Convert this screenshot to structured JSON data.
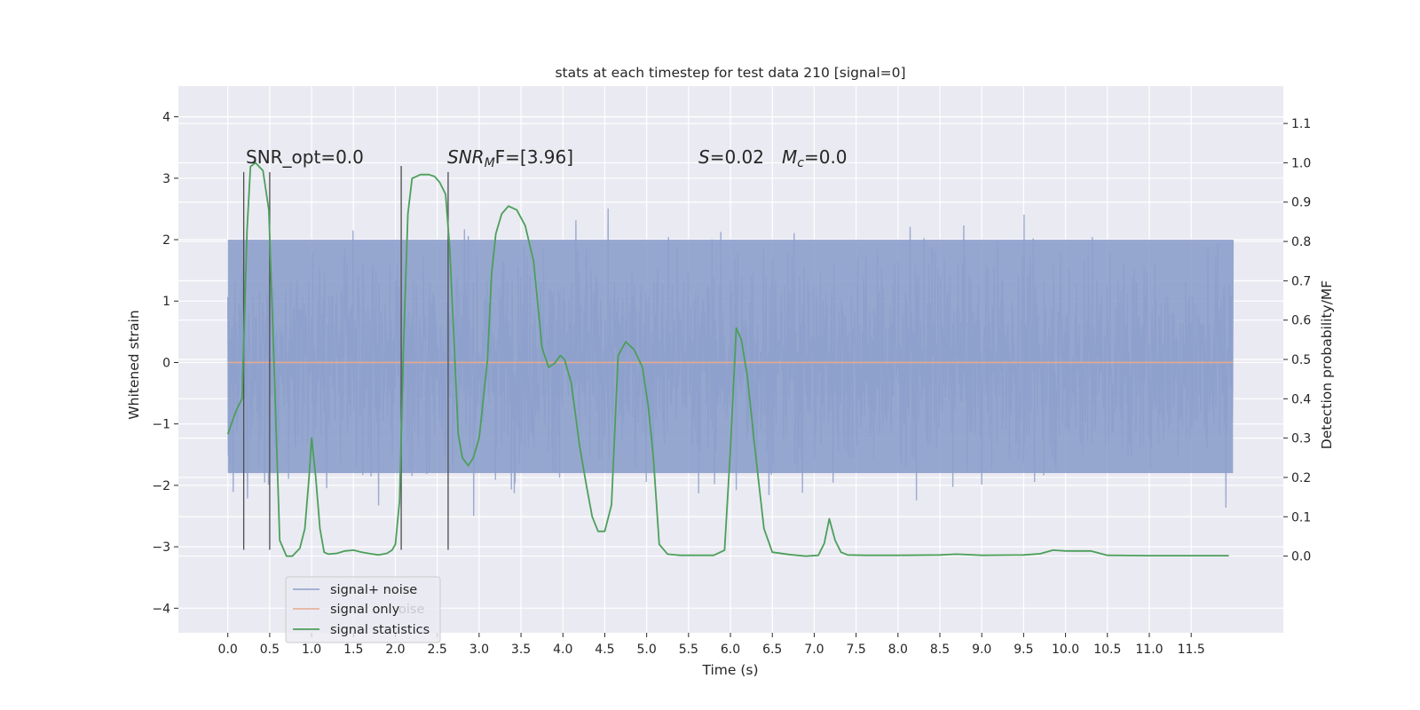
{
  "chart_data": {
    "type": "line",
    "title": "stats at each timestep for test data 210 [signal=0]",
    "xlabel": "Time (s)",
    "ylabel_left": "Whitened strain",
    "ylabel_right": "Detection probability/MF",
    "xlim": [
      -0.59,
      12.6
    ],
    "ylim_left": [
      -4.4,
      4.5
    ],
    "ylim_right": [
      -0.195,
      1.195
    ],
    "x_ticks": [
      0.0,
      0.5,
      1.0,
      1.5,
      2.0,
      2.5,
      3.0,
      3.5,
      4.0,
      4.5,
      5.0,
      5.5,
      6.0,
      6.5,
      7.0,
      7.5,
      8.0,
      8.5,
      9.0,
      9.5,
      10.0,
      10.5,
      11.0,
      11.5
    ],
    "x_tick_labels": [
      "0.0",
      "0.5",
      "1.0",
      "1.5",
      "2.0",
      "2.5",
      "3.0",
      "3.5",
      "4.0",
      "4.5",
      "5.0",
      "5.5",
      "6.0",
      "6.5",
      "7.0",
      "7.5",
      "8.0",
      "8.5",
      "9.0",
      "9.5",
      "10.0",
      "10.5",
      "11.0",
      "11.5"
    ],
    "y_left_ticks": [
      4,
      3,
      2,
      1,
      0,
      -1,
      -2,
      -3,
      -4
    ],
    "y_left_tick_labels": [
      "4",
      "3",
      "2",
      "1",
      "0",
      "−1",
      "−2",
      "−3",
      "−4"
    ],
    "y_right_ticks": [
      1.1,
      1.0,
      0.9,
      0.8,
      0.7,
      0.6,
      0.5,
      0.4,
      0.3,
      0.2,
      0.1,
      0.0
    ],
    "y_right_tick_labels": [
      "1.1",
      "1.0",
      "0.9",
      "0.8",
      "0.7",
      "0.6",
      "0.5",
      "0.4",
      "0.3",
      "0.2",
      "0.1",
      "0.0"
    ],
    "grid": true,
    "legend_position": "lower-left",
    "legend": [
      {
        "label": "signal+ noise",
        "color": "#8da0cb"
      },
      {
        "label": "signal only",
        "color": "#e5a990"
      },
      {
        "label": "signal statistics",
        "color": "#4c9f5a"
      }
    ],
    "legend_ghost_text": "oise",
    "annotations": {
      "snr_opt": "SNR_opt=0.0",
      "snr_mf_main": "SNR",
      "snr_mf_sub": "M",
      "snr_mf_rest": "F=[3.96]",
      "s_label": "S",
      "s_value": "=0.02",
      "mc_label": "M",
      "mc_sub": "c",
      "mc_value": "=0.0"
    },
    "colors": {
      "background": "#eaeaf2",
      "grid": "#ffffff",
      "noise": "#8da0cb",
      "signal_only": "#e5a990",
      "statistics": "#4c9f5a",
      "vlines": "#4d4d4d"
    },
    "noise_band": {
      "x_start": 0.0,
      "x_end": 12.0,
      "core_low": -1.8,
      "core_high": 2.0
    },
    "signal_only": {
      "x": [
        0.0,
        12.0
      ],
      "y": [
        0.0,
        0.0
      ]
    },
    "vertical_lines": [
      {
        "x": 0.19,
        "y_low": -3.05,
        "y_high": 3.1
      },
      {
        "x": 0.5,
        "y_low": -3.05,
        "y_high": 3.1
      },
      {
        "x": 2.07,
        "y_low": -3.05,
        "y_high": 3.2
      },
      {
        "x": 2.63,
        "y_low": -3.05,
        "y_high": 3.1
      }
    ],
    "series": [
      {
        "name": "signal statistics",
        "x": [
          0.0,
          0.1,
          0.17,
          0.23,
          0.27,
          0.33,
          0.42,
          0.49,
          0.55,
          0.62,
          0.7,
          0.77,
          0.86,
          0.92,
          0.97,
          1.0,
          1.05,
          1.1,
          1.15,
          1.2,
          1.3,
          1.4,
          1.5,
          1.6,
          1.7,
          1.8,
          1.9,
          1.96,
          2.0,
          2.05,
          2.1,
          2.15,
          2.2,
          2.3,
          2.4,
          2.47,
          2.53,
          2.6,
          2.65,
          2.7,
          2.75,
          2.8,
          2.87,
          2.93,
          3.0,
          3.05,
          3.1,
          3.15,
          3.2,
          3.27,
          3.35,
          3.45,
          3.55,
          3.65,
          3.75,
          3.83,
          3.9,
          3.97,
          4.02,
          4.1,
          4.15,
          4.2,
          4.28,
          4.35,
          4.42,
          4.5,
          4.58,
          4.66,
          4.75,
          4.85,
          4.95,
          5.02,
          5.08,
          5.15,
          5.25,
          5.4,
          5.6,
          5.8,
          5.93,
          6.0,
          6.07,
          6.13,
          6.2,
          6.3,
          6.4,
          6.5,
          6.7,
          6.9,
          7.05,
          7.12,
          7.18,
          7.25,
          7.32,
          7.4,
          7.6,
          8.0,
          8.5,
          8.7,
          9.0,
          9.5,
          9.7,
          9.85,
          10.0,
          10.15,
          10.3,
          10.5,
          11.0,
          11.5,
          11.95
        ],
        "values": [
          0.31,
          0.37,
          0.4,
          0.83,
          0.99,
          1.0,
          0.98,
          0.88,
          0.5,
          0.04,
          0.0,
          0.0,
          0.02,
          0.07,
          0.2,
          0.3,
          0.2,
          0.07,
          0.01,
          0.005,
          0.007,
          0.013,
          0.015,
          0.01,
          0.006,
          0.003,
          0.007,
          0.015,
          0.03,
          0.14,
          0.55,
          0.87,
          0.96,
          0.97,
          0.97,
          0.965,
          0.95,
          0.92,
          0.78,
          0.55,
          0.31,
          0.25,
          0.23,
          0.25,
          0.3,
          0.4,
          0.5,
          0.72,
          0.82,
          0.87,
          0.89,
          0.88,
          0.84,
          0.75,
          0.53,
          0.48,
          0.49,
          0.51,
          0.5,
          0.44,
          0.36,
          0.28,
          0.18,
          0.1,
          0.063,
          0.063,
          0.13,
          0.51,
          0.545,
          0.525,
          0.48,
          0.38,
          0.25,
          0.03,
          0.005,
          0.002,
          0.002,
          0.002,
          0.015,
          0.27,
          0.58,
          0.55,
          0.46,
          0.26,
          0.07,
          0.01,
          0.004,
          0.0,
          0.002,
          0.032,
          0.095,
          0.04,
          0.01,
          0.003,
          0.002,
          0.002,
          0.003,
          0.005,
          0.002,
          0.003,
          0.006,
          0.015,
          0.013,
          0.013,
          0.013,
          0.002,
          0.001,
          0.001,
          0.001
        ]
      }
    ]
  }
}
